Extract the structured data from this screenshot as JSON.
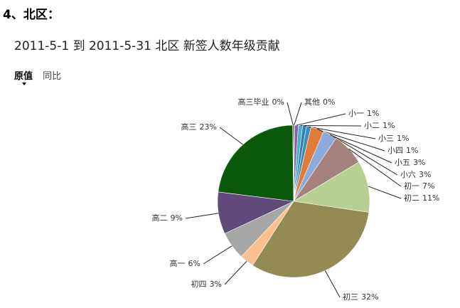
{
  "header": "4、北区：",
  "tabs": [
    "原值",
    "同比"
  ],
  "chart_data": {
    "type": "pie",
    "title": "2011-5-1 到 2011-5-31 北区 新签人数年级贡献",
    "categories": [
      "其他",
      "小一",
      "小二",
      "小三",
      "小四",
      "小五",
      "小六",
      "初一",
      "初二",
      "初三",
      "初四",
      "高一",
      "高二",
      "高三",
      "高三毕业"
    ],
    "values": [
      0.2,
      0.8,
      0.9,
      0.8,
      1.0,
      2.8,
      3.0,
      7.0,
      11.0,
      32.0,
      3.0,
      6.0,
      9.0,
      23.0,
      0.2
    ],
    "value_labels": [
      "0%",
      "1%",
      "1%",
      "1%",
      "1%",
      "3%",
      "3%",
      "7%",
      "11%",
      "32%",
      "3%",
      "6%",
      "9%",
      "23%",
      "0%"
    ],
    "colors": [
      "#a0522d",
      "#8064a2",
      "#4bacc6",
      "#2c7fb8",
      "#3a8fc0",
      "#e07b39",
      "#8eaadb",
      "#a6807a",
      "#b7cf92",
      "#948a54",
      "#fac090",
      "#a6a6a6",
      "#604a7b",
      "#0b5a0b",
      "#333333"
    ]
  }
}
